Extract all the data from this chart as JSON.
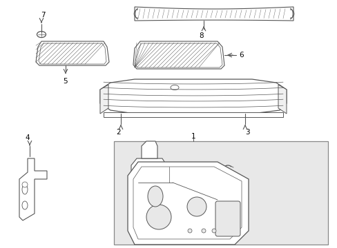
{
  "background_color": "#ffffff",
  "line_color": "#555555",
  "text_color": "#000000",
  "figsize": [
    4.89,
    3.6
  ],
  "dpi": 100,
  "box_color": "#e8e8e8",
  "box_border": "#999999"
}
